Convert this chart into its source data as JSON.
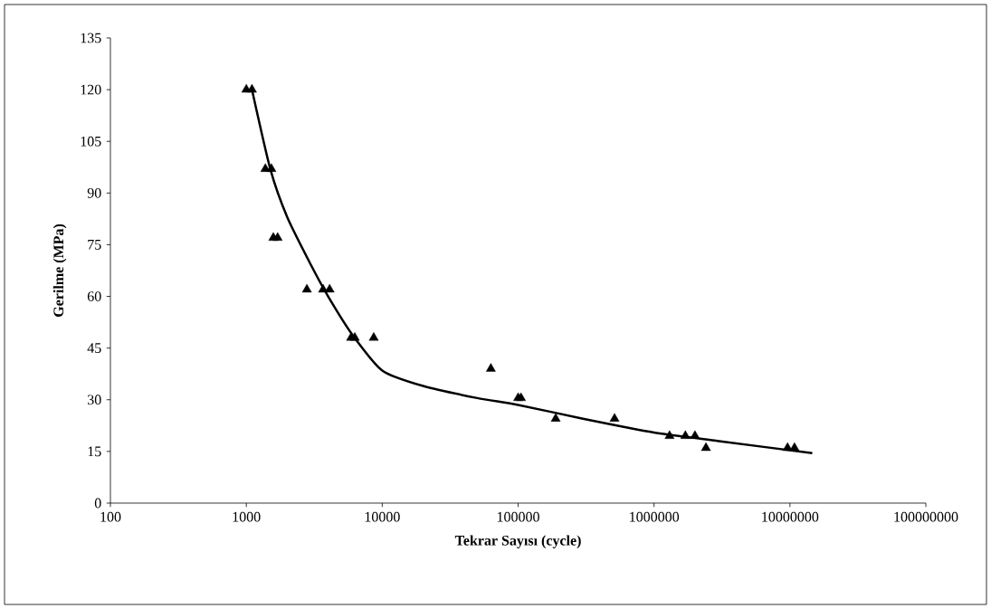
{
  "chart_data": {
    "type": "scatter",
    "xlabel": "Tekrar Sayısı (cycle)",
    "ylabel": "Gerilme (MPa)",
    "log": "x",
    "xlim": [
      100,
      100000000
    ],
    "xticks": [
      100,
      1000,
      10000,
      100000,
      1000000,
      10000000,
      100000000
    ],
    "ylim": [
      0,
      135
    ],
    "yticks": [
      0,
      15,
      30,
      45,
      60,
      75,
      90,
      105,
      120,
      135
    ],
    "series": [
      {
        "color": "#000000",
        "marker": "triangle",
        "x": [
          1000,
          1100,
          1380,
          1530,
          1580,
          1700,
          2790,
          3670,
          4100,
          5900,
          6280,
          8660,
          63000,
          100000,
          105000,
          189000,
          512000,
          1300000,
          1700000,
          2000000,
          2410000,
          9600000,
          10800000
        ],
        "values": [
          120,
          120,
          97,
          97,
          77,
          77,
          62,
          62,
          62,
          48,
          48,
          48,
          39,
          30.5,
          30.5,
          24.5,
          24.5,
          19.5,
          19.5,
          19.5,
          16,
          16,
          16
        ]
      },
      {
        "type": "line",
        "color": "#000000",
        "marker": "none",
        "line_style": "solid",
        "x": [
          1100,
          1500,
          2000,
          3000,
          4000,
          6000,
          10000,
          20000,
          50000,
          100000,
          300000,
          1000000,
          3000000,
          14600000
        ],
        "values": [
          120,
          97,
          83,
          69,
          60,
          49,
          38.5,
          34,
          30.5,
          28.5,
          24.5,
          20.5,
          18,
          14.5
        ]
      }
    ]
  }
}
